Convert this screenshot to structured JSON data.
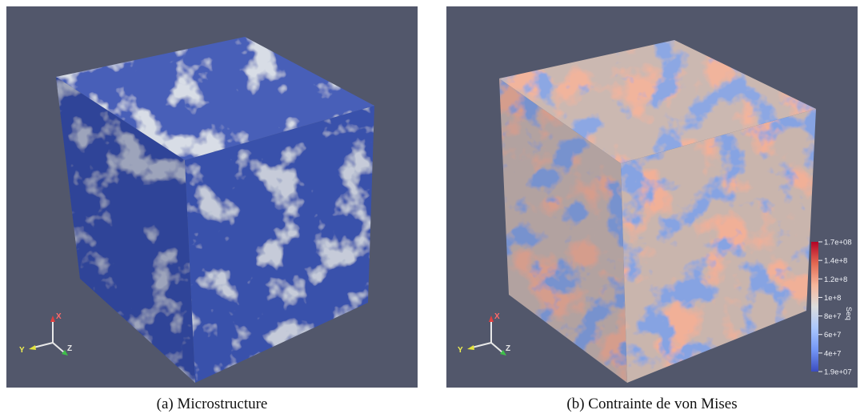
{
  "figure": {
    "panels": [
      {
        "id": "a",
        "caption": "(a)  Microstructure",
        "colors": {
          "base": "#3c56b4",
          "light": "#aab4c6",
          "dark": "#2a3f8f"
        }
      },
      {
        "id": "b",
        "caption": "(b)  Contrainte de von Mises",
        "colors": {
          "base": "#c9b5ad",
          "hot": "#e06c4d",
          "cold": "#3d5fc2"
        }
      }
    ],
    "background_color": "#52576b",
    "axes_triad": {
      "x": "X",
      "y": "Y",
      "z": "Z"
    },
    "colorbar": {
      "title": "Seq",
      "ticks": [
        "1.7e+08",
        "1.4e+8",
        "1.2e+8",
        "1e+8",
        "8e+7",
        "6e+7",
        "4e+7",
        "1.9e+07"
      ],
      "colors": [
        "#b40426",
        "#e26952",
        "#f6b69b",
        "#dcdddd",
        "#aac7fd",
        "#7396f5",
        "#3b4cc0"
      ]
    }
  }
}
